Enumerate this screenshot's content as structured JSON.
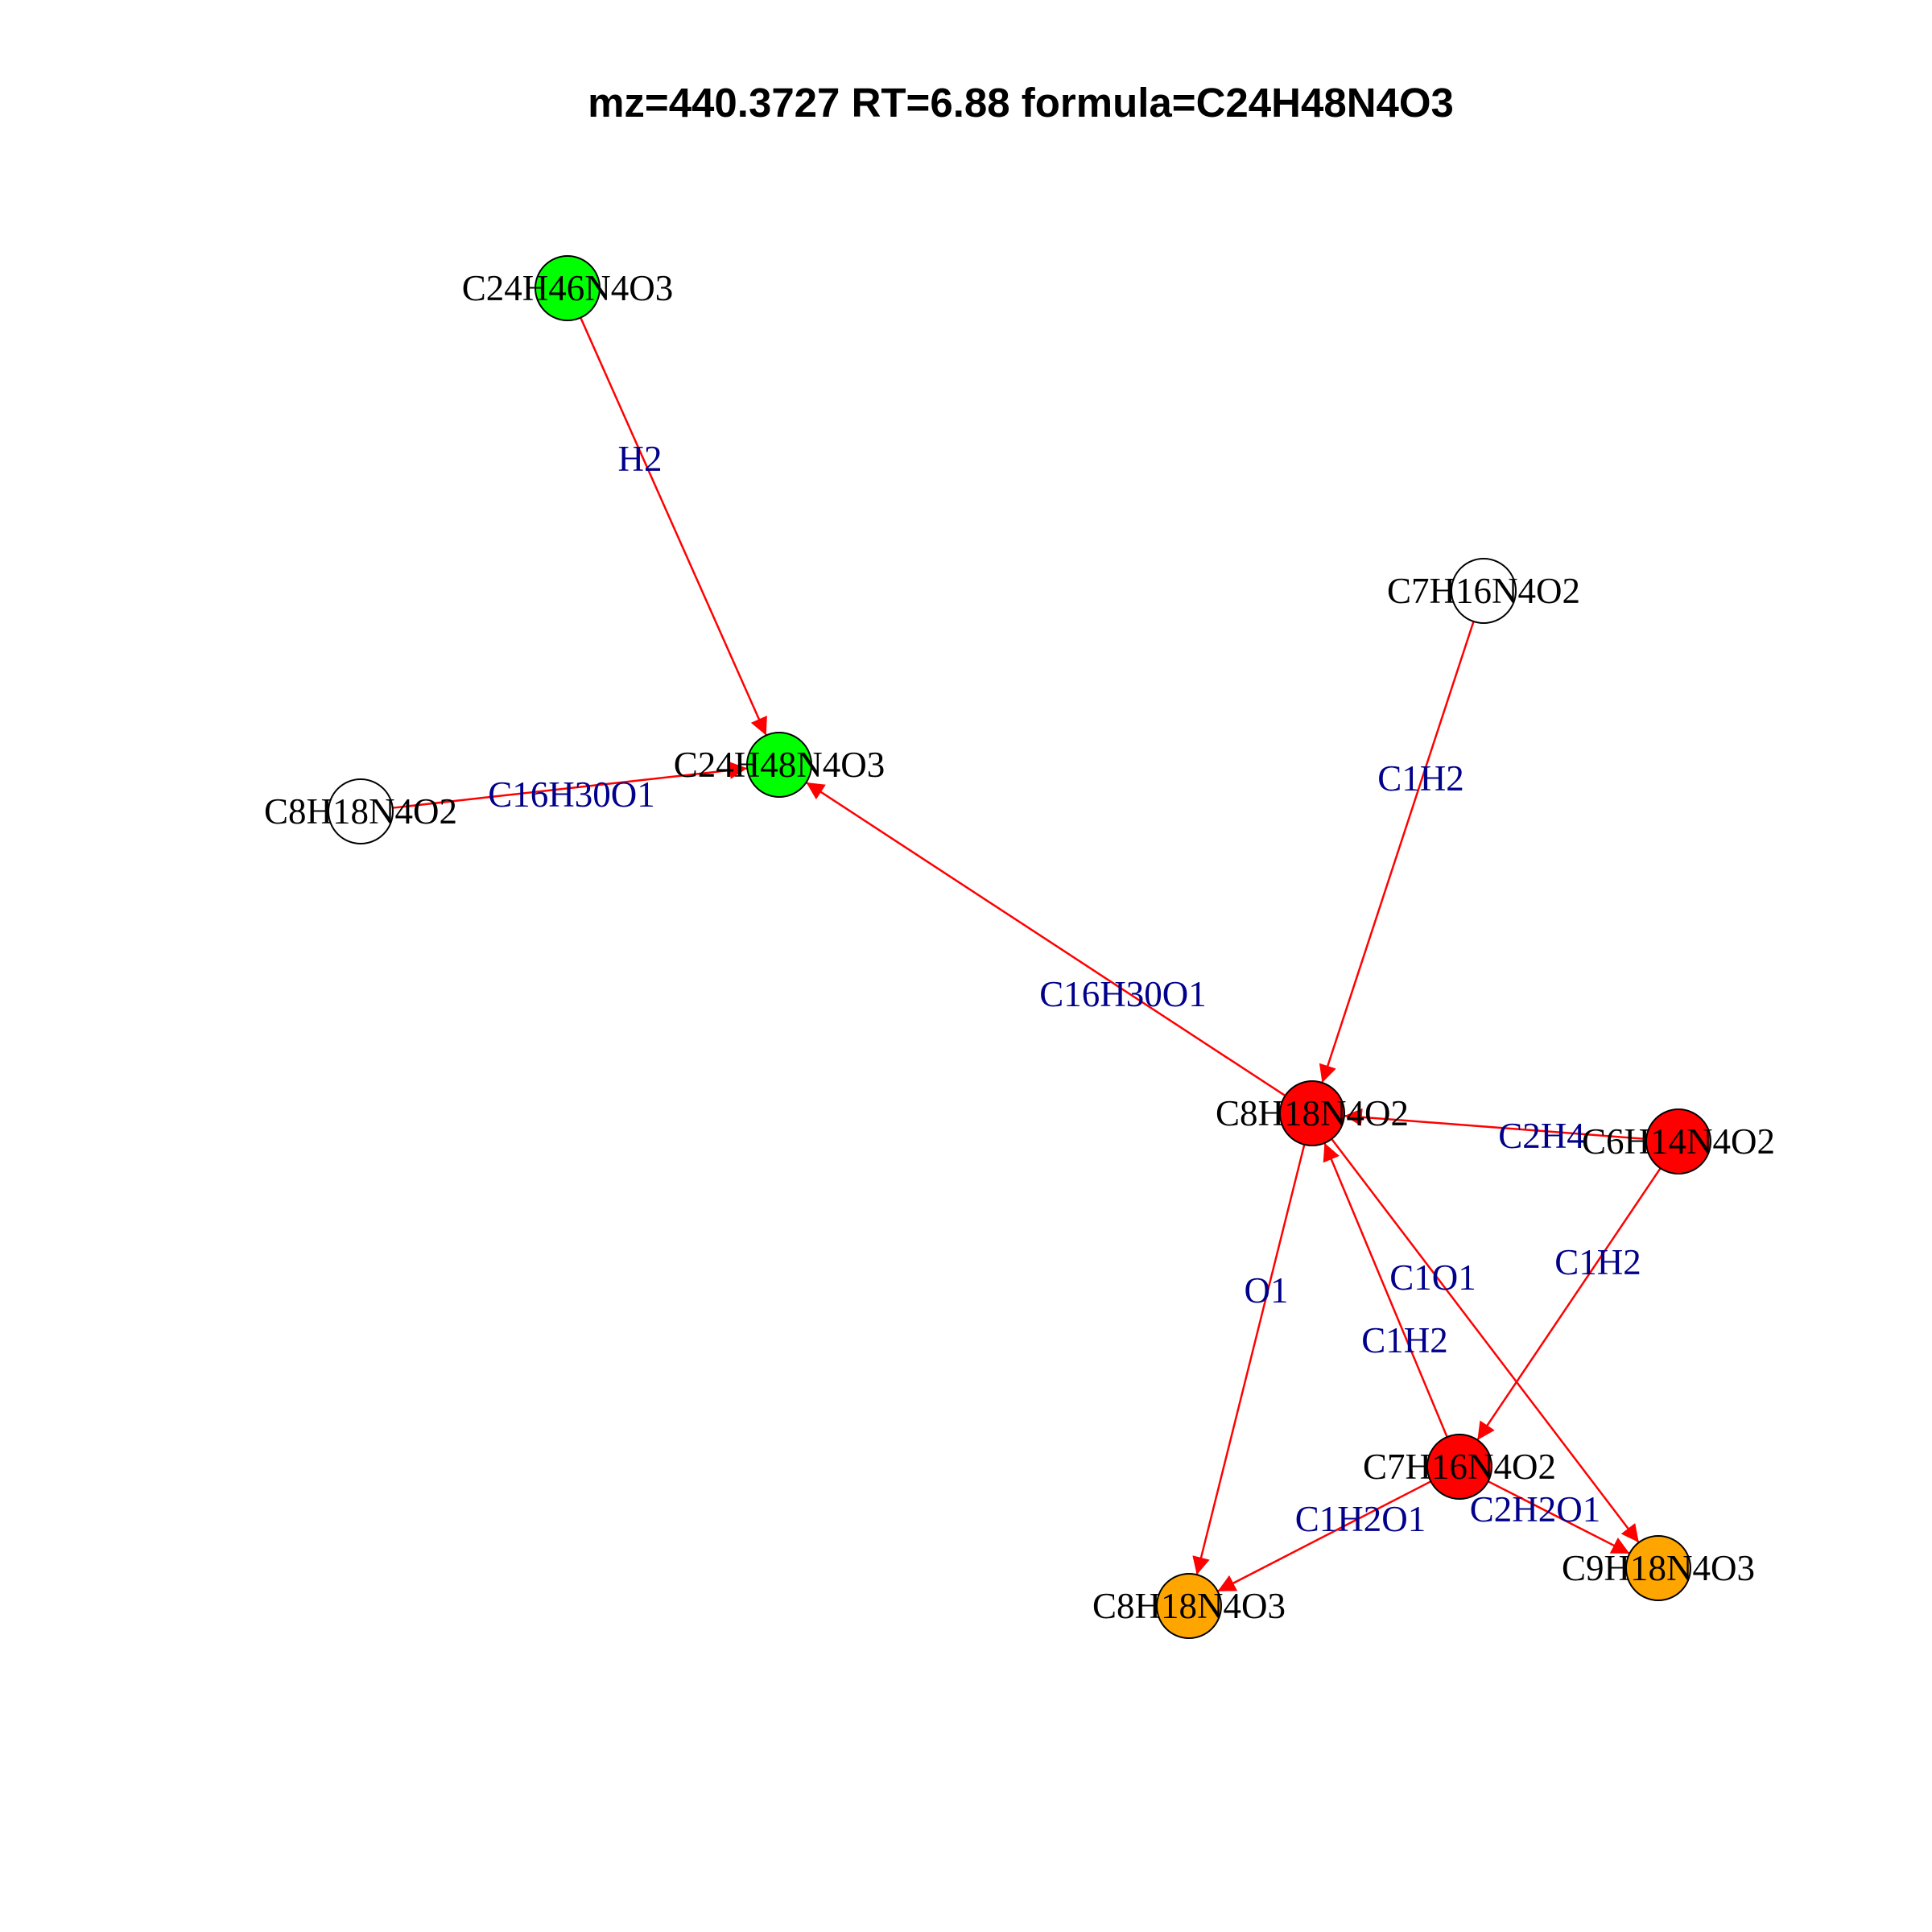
{
  "title": "mz=440.3727 RT=6.88 formula=C24H48N4O3",
  "colors": {
    "edge": "#ff0000",
    "edge_label": "#00008b",
    "node_stroke": "#000000",
    "green": "#00ff00",
    "red": "#ff0000",
    "orange": "#ffa500",
    "white": "#ffffff"
  },
  "nodes": [
    {
      "id": "n1",
      "label": "C24H46N4O3",
      "color": "green"
    },
    {
      "id": "n2",
      "label": "C24H48N4O3",
      "color": "green"
    },
    {
      "id": "n3",
      "label": "C8H18N4O2",
      "color": "white"
    },
    {
      "id": "n4",
      "label": "C7H16N4O2",
      "color": "white"
    },
    {
      "id": "n5",
      "label": "C8H18N4O2",
      "color": "red"
    },
    {
      "id": "n6",
      "label": "C6H14N4O2",
      "color": "red"
    },
    {
      "id": "n7",
      "label": "C7H16N4O2",
      "color": "red"
    },
    {
      "id": "n8",
      "label": "C8H18N4O3",
      "color": "orange"
    },
    {
      "id": "n9",
      "label": "C9H18N4O3",
      "color": "orange"
    }
  ],
  "edges": [
    {
      "from": "n1",
      "to": "n2",
      "label": "H2"
    },
    {
      "from": "n3",
      "to": "n2",
      "label": "C16H30O1"
    },
    {
      "from": "n5",
      "to": "n2",
      "label": "C16H30O1"
    },
    {
      "from": "n4",
      "to": "n5",
      "label": "C1H2"
    },
    {
      "from": "n6",
      "to": "n5",
      "label": "C2H4"
    },
    {
      "from": "n6",
      "to": "n7",
      "label": "C1H2"
    },
    {
      "from": "n7",
      "to": "n5",
      "label": "C1H2"
    },
    {
      "from": "n5",
      "to": "n8",
      "label": "O1"
    },
    {
      "from": "n5",
      "to": "n9",
      "label": "C1O1"
    },
    {
      "from": "n7",
      "to": "n8",
      "label": "C1H2O1"
    },
    {
      "from": "n7",
      "to": "n9",
      "label": "C2H2O1"
    }
  ]
}
